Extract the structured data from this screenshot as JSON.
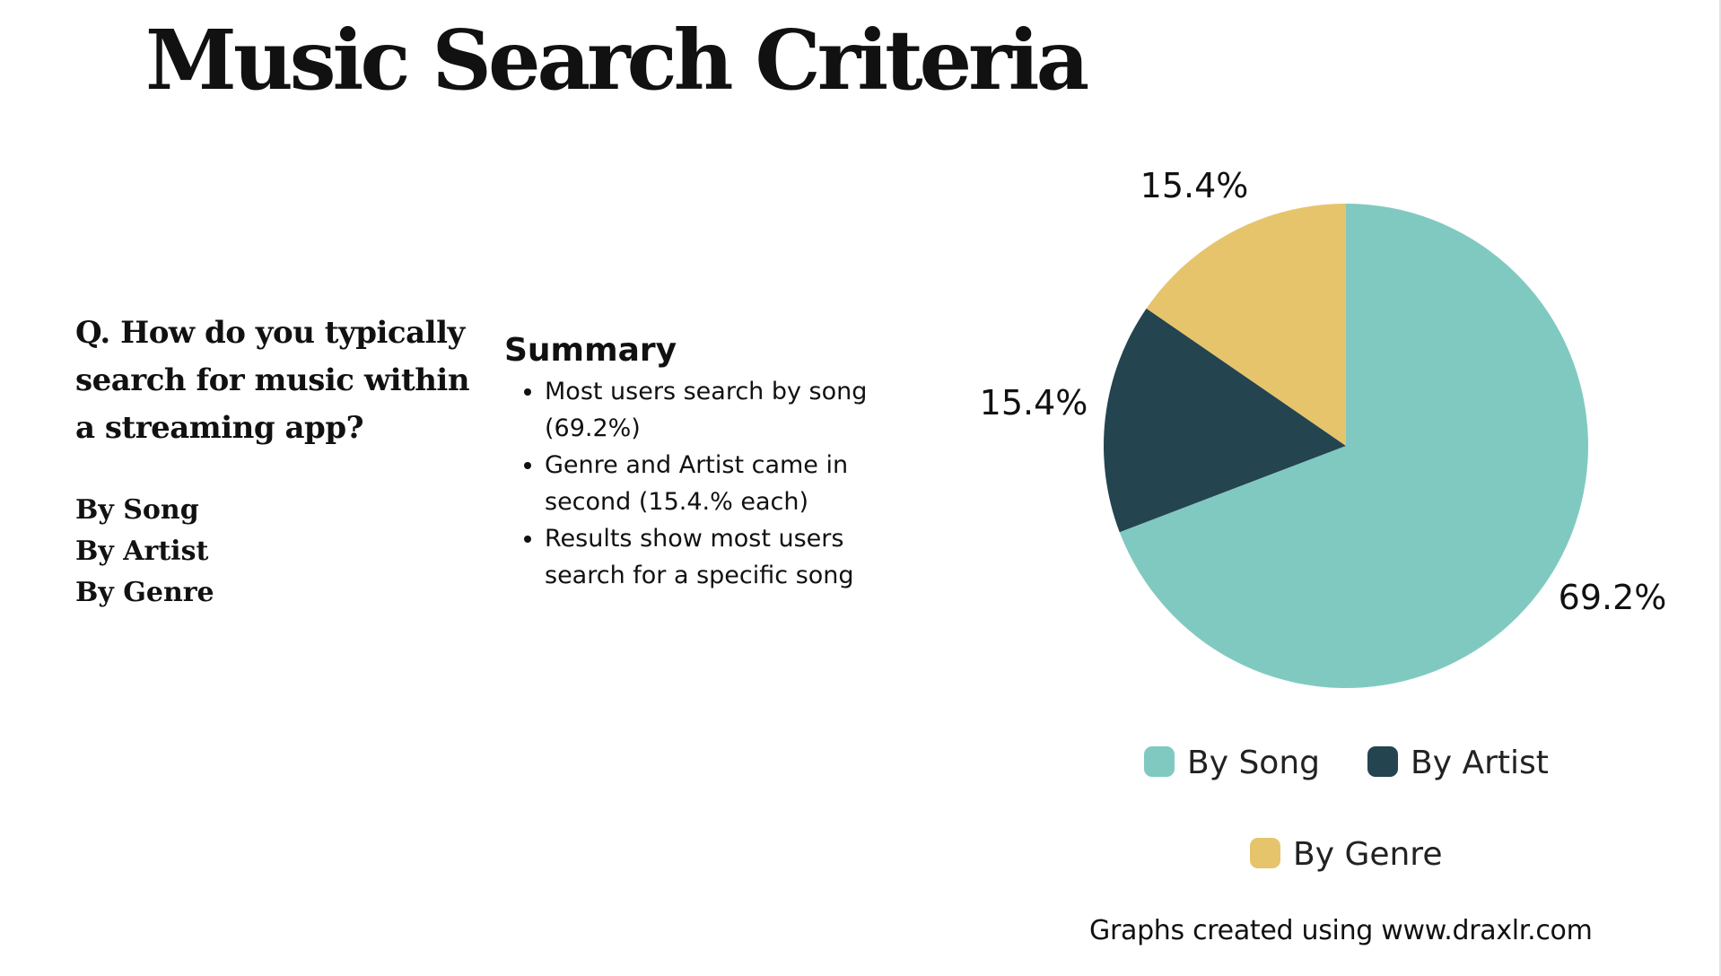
{
  "title": "Music Search Criteria",
  "question": "Q. How do you typically search for music within a streaming app?",
  "options": [
    "By Song",
    "By Artist",
    "By Genre"
  ],
  "summary": {
    "heading": "Summary",
    "bullets": [
      "Most users search by song (69.2%)",
      "Genre and Artist came in second (15.4.% each)",
      "Results show most users search for a specific song"
    ]
  },
  "credit": "Graphs created using www.draxlr.com",
  "chart_data": {
    "type": "pie",
    "title": "",
    "categories": [
      "By Song",
      "By Artist",
      "By Genre"
    ],
    "values": [
      69.2,
      15.4,
      15.4
    ],
    "labels": [
      "69.2%",
      "15.4%",
      "15.4%"
    ],
    "colors": [
      "#80c9c1",
      "#244450",
      "#e6c46b"
    ],
    "legend": {
      "placement": "bottom",
      "entries": [
        "By Song",
        "By Artist",
        "By Genre"
      ]
    }
  }
}
